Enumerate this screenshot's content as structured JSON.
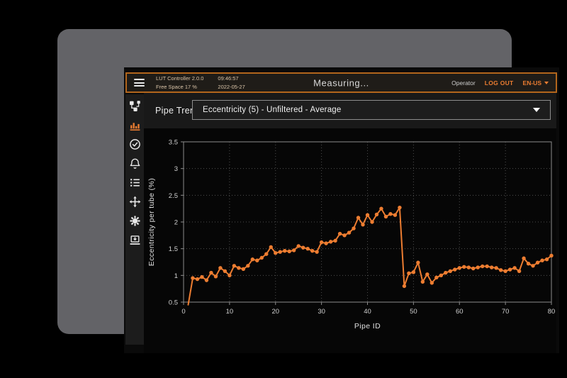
{
  "header": {
    "app_name": "LUT Controller 2.0.0",
    "time": "09:46:57",
    "free_space": "Free Space 17 %",
    "date": "2022-05-27",
    "status": "Measuring...",
    "user_role": "Operator",
    "logout_label": "LOG OUT",
    "language": "EN-US"
  },
  "sidebar": {
    "items": [
      {
        "icon": "workflow-icon",
        "active": false
      },
      {
        "icon": "bar-chart-icon",
        "active": true
      },
      {
        "icon": "check-circle-icon",
        "active": false
      },
      {
        "icon": "bell-icon",
        "active": false
      },
      {
        "icon": "list-icon",
        "active": false
      },
      {
        "icon": "move-icon",
        "active": false
      },
      {
        "icon": "gear-icon",
        "active": false
      },
      {
        "icon": "monitor-update-icon",
        "active": false
      }
    ]
  },
  "trend": {
    "label": "Pipe Trend",
    "selected_option": "Eccentricity (5) - Unfiltered - Average"
  },
  "colors": {
    "accent": "#ED7D31",
    "topbar_border": "#B2651C",
    "bezel": "#636367",
    "grid": "#4f4f4f",
    "frame": "#8c8c8c"
  },
  "chart_data": {
    "type": "line",
    "xlabel": "Pipe ID",
    "ylabel": "Eccentricity per tube (%)",
    "xlim": [
      0,
      80
    ],
    "ylim": [
      0.5,
      3.5
    ],
    "x_ticks": [
      0,
      10,
      20,
      30,
      40,
      50,
      60,
      70,
      80
    ],
    "y_ticks": [
      0.5,
      1,
      1.5,
      2,
      2.5,
      3,
      3.5
    ],
    "grid": true,
    "line_color": "#ED7D31",
    "x": [
      1,
      2,
      3,
      4,
      5,
      6,
      7,
      8,
      9,
      10,
      11,
      12,
      13,
      14,
      15,
      16,
      17,
      18,
      19,
      20,
      21,
      22,
      23,
      24,
      25,
      26,
      27,
      28,
      29,
      30,
      31,
      32,
      33,
      34,
      35,
      36,
      37,
      38,
      39,
      40,
      41,
      42,
      43,
      44,
      45,
      46,
      47,
      48,
      49,
      50,
      51,
      52,
      53,
      54,
      55,
      56,
      57,
      58,
      59,
      60,
      61,
      62,
      63,
      64,
      65,
      66,
      67,
      68,
      69,
      70,
      71,
      72,
      73,
      74,
      75,
      76,
      77,
      78,
      79,
      80
    ],
    "y": [
      0.45,
      0.95,
      0.93,
      0.97,
      0.91,
      1.05,
      0.98,
      1.14,
      1.08,
      1.0,
      1.18,
      1.14,
      1.12,
      1.18,
      1.3,
      1.28,
      1.33,
      1.4,
      1.53,
      1.42,
      1.44,
      1.46,
      1.45,
      1.47,
      1.55,
      1.52,
      1.5,
      1.46,
      1.44,
      1.62,
      1.6,
      1.63,
      1.65,
      1.78,
      1.75,
      1.8,
      1.88,
      2.08,
      1.95,
      2.13,
      2.0,
      2.14,
      2.25,
      2.1,
      2.15,
      2.13,
      2.27,
      0.8,
      1.04,
      1.06,
      1.24,
      0.88,
      1.02,
      0.86,
      0.96,
      1.0,
      1.05,
      1.08,
      1.11,
      1.14,
      1.16,
      1.15,
      1.13,
      1.15,
      1.17,
      1.17,
      1.15,
      1.14,
      1.1,
      1.08,
      1.11,
      1.14,
      1.08,
      1.32,
      1.22,
      1.18,
      1.24,
      1.28,
      1.3,
      1.37
    ]
  }
}
